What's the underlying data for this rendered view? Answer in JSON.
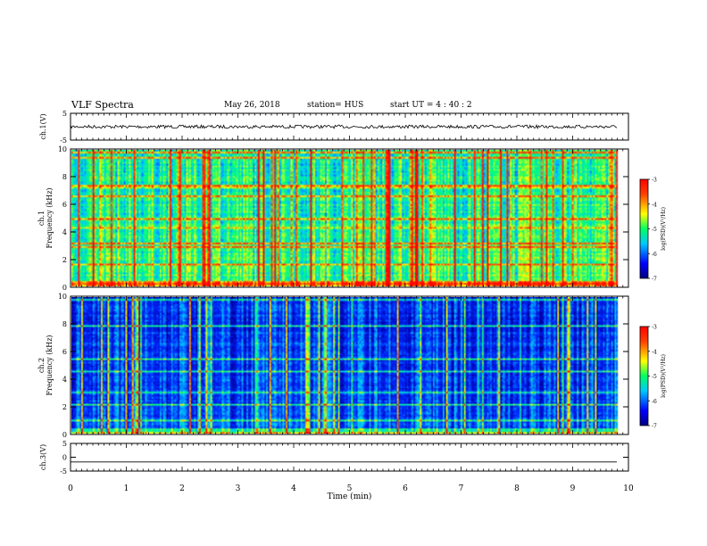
{
  "header": {
    "title": "VLF Spectra",
    "date": "May 26, 2018",
    "station": "station= HUS",
    "start": "start  UT =   4 : 40 : 2"
  },
  "chart_data": [
    {
      "type": "line",
      "panel": "ch1-waveform",
      "ylabel": "ch.1(V)",
      "ylim": [
        -5,
        5
      ],
      "yticks": [
        "5",
        "-5"
      ],
      "xlim": [
        0,
        10
      ],
      "series": [
        {
          "approx_level": 0,
          "approx_amplitude": 0.6
        }
      ]
    },
    {
      "type": "heatmap",
      "panel": "ch1-spectrogram",
      "ylabel": "ch.1",
      "ylabel2": "Frequency (kHz)",
      "ylim": [
        0,
        10
      ],
      "yticks": [
        "0",
        "2",
        "4",
        "6",
        "8",
        "10"
      ],
      "xlim": [
        0,
        10
      ],
      "data_end_min": 9.8,
      "intensity_bias": 0.55,
      "colorbar": {
        "label": "log(PSD)(V²/Hz)",
        "range": [
          -7,
          -3
        ],
        "ticks": [
          "-3",
          "-4",
          "-5",
          "-6",
          "-7"
        ]
      }
    },
    {
      "type": "heatmap",
      "panel": "ch2-spectrogram",
      "ylabel": "ch.2",
      "ylabel2": "Frequency (kHz)",
      "ylim": [
        0,
        10
      ],
      "yticks": [
        "0",
        "2",
        "4",
        "6",
        "8",
        "10"
      ],
      "xlim": [
        0,
        10
      ],
      "data_end_min": 9.8,
      "intensity_bias": 0.3,
      "colorbar": {
        "label": "log(PSD)(V²/Hz)",
        "range": [
          -7,
          -3
        ],
        "ticks": [
          "-3",
          "-4",
          "-5",
          "-6",
          "-7"
        ]
      }
    },
    {
      "type": "line",
      "panel": "ch3-waveform",
      "ylabel": "ch.3(V)",
      "ylim": [
        -5,
        5
      ],
      "yticks": [
        "5",
        "0",
        "-5"
      ],
      "xlim": [
        0,
        10
      ],
      "series": [
        {
          "approx_level": -1.7,
          "approx_amplitude": 0
        }
      ]
    }
  ],
  "xaxis": {
    "label": "Time  (min)",
    "ticks": [
      "0",
      "1",
      "2",
      "3",
      "4",
      "5",
      "6",
      "7",
      "8",
      "9",
      "10"
    ]
  }
}
